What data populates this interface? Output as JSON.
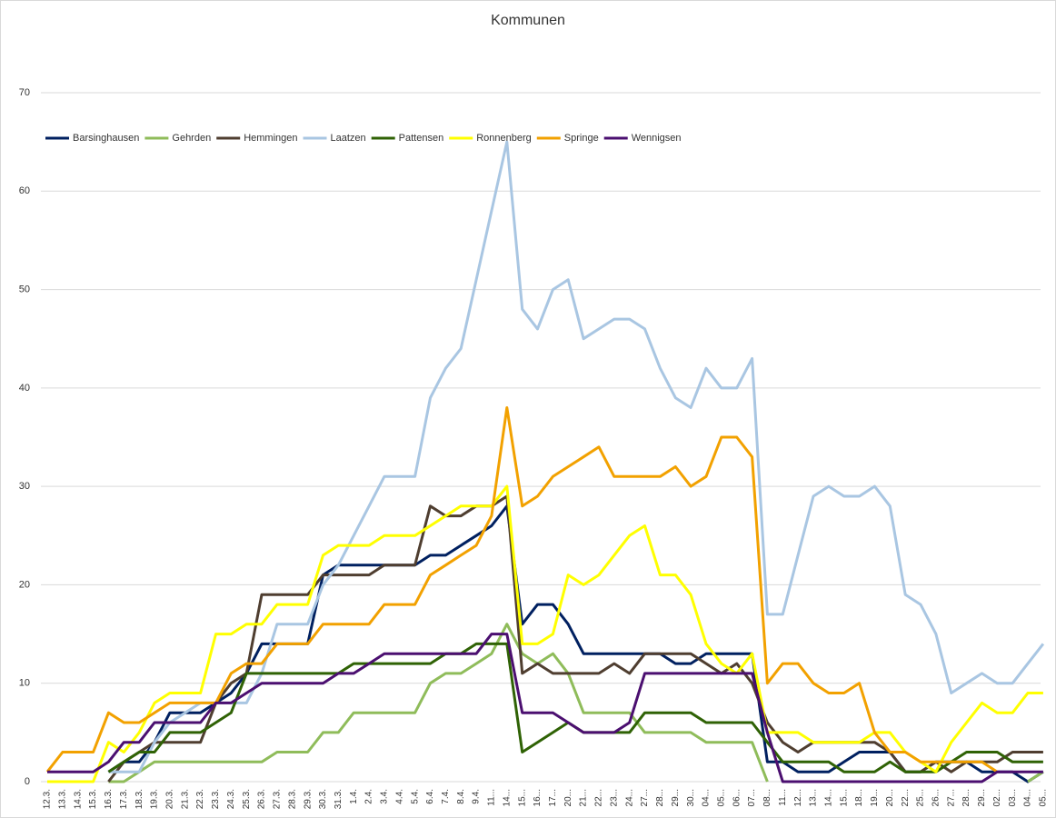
{
  "chart_data": {
    "type": "line",
    "title": "Kommunen",
    "categories": [
      "12.3.",
      "13.3.",
      "14.3.",
      "15.3.",
      "16.3.",
      "17.3.",
      "18.3.",
      "19.3.",
      "20.3.",
      "21.3.",
      "22.3.",
      "23.3.",
      "24.3.",
      "25.3.",
      "26.3.",
      "27.3.",
      "28.3.",
      "29.3.",
      "30.3.",
      "31.3.",
      "1.4.",
      "2.4.",
      "3.4.",
      "4.4.",
      "5.4.",
      "6.4.",
      "7.4.",
      "8.4.",
      "9.4.",
      "11...",
      "14...",
      "15...",
      "16...",
      "17...",
      "20...",
      "21...",
      "22...",
      "23...",
      "24...",
      "27...",
      "28...",
      "29...",
      "30...",
      "04...",
      "05...",
      "06...",
      "07...",
      "08...",
      "11...",
      "12...",
      "13...",
      "14...",
      "15...",
      "18...",
      "19...",
      "20...",
      "22...",
      "25...",
      "26...",
      "27...",
      "28...",
      "29...",
      "02...",
      "03...",
      "04...",
      "05..."
    ],
    "series": [
      {
        "name": "Barsinghausen",
        "color": "#002060",
        "values": [
          null,
          null,
          null,
          null,
          1,
          2,
          2,
          4,
          7,
          7,
          7,
          8,
          9,
          11,
          14,
          14,
          14,
          14,
          21,
          22,
          22,
          22,
          22,
          22,
          22,
          23,
          23,
          24,
          25,
          26,
          28,
          16,
          18,
          18,
          16,
          13,
          13,
          13,
          13,
          13,
          13,
          12,
          12,
          13,
          13,
          13,
          13,
          2,
          2,
          1,
          1,
          1,
          2,
          3,
          3,
          3,
          1,
          1,
          2,
          2,
          2,
          1,
          1,
          1,
          0,
          1
        ]
      },
      {
        "name": "Gehrden",
        "color": "#8fbc5a",
        "values": [
          null,
          null,
          null,
          null,
          0,
          0,
          1,
          2,
          2,
          2,
          2,
          2,
          2,
          2,
          2,
          3,
          3,
          3,
          5,
          5,
          7,
          7,
          7,
          7,
          7,
          10,
          11,
          11,
          12,
          13,
          16,
          13,
          12,
          13,
          11,
          7,
          7,
          7,
          7,
          5,
          5,
          5,
          5,
          4,
          4,
          4,
          4,
          0,
          null,
          null,
          null,
          null,
          null,
          null,
          null,
          null,
          null,
          null,
          null,
          null,
          null,
          null,
          null,
          null,
          0,
          1
        ]
      },
      {
        "name": "Hemmingen",
        "color": "#4f3e30",
        "values": [
          null,
          null,
          null,
          null,
          0,
          2,
          3,
          4,
          4,
          4,
          4,
          8,
          10,
          11,
          19,
          19,
          19,
          19,
          21,
          21,
          21,
          21,
          22,
          22,
          22,
          28,
          27,
          27,
          28,
          28,
          29,
          11,
          12,
          11,
          11,
          11,
          11,
          12,
          11,
          13,
          13,
          13,
          13,
          12,
          11,
          12,
          10,
          6,
          4,
          3,
          4,
          4,
          4,
          4,
          4,
          3,
          1,
          1,
          2,
          1,
          2,
          2,
          2,
          3,
          3,
          3
        ]
      },
      {
        "name": "Laatzen",
        "color": "#a9c6e2",
        "values": [
          null,
          null,
          null,
          null,
          1,
          1,
          1,
          4,
          6,
          7,
          8,
          8,
          8,
          8,
          11,
          16,
          16,
          16,
          20,
          22,
          25,
          28,
          31,
          31,
          31,
          39,
          42,
          44,
          51,
          58,
          65,
          48,
          46,
          50,
          51,
          45,
          46,
          47,
          47,
          46,
          42,
          39,
          38,
          42,
          40,
          40,
          43,
          17,
          17,
          23,
          29,
          30,
          29,
          29,
          30,
          28,
          19,
          18,
          15,
          9,
          10,
          11,
          10,
          10,
          12,
          14
        ]
      },
      {
        "name": "Pattensen",
        "color": "#2f6205",
        "values": [
          null,
          null,
          null,
          null,
          1,
          2,
          3,
          3,
          5,
          5,
          5,
          6,
          7,
          11,
          11,
          11,
          11,
          11,
          11,
          11,
          12,
          12,
          12,
          12,
          12,
          12,
          13,
          13,
          14,
          14,
          14,
          3,
          4,
          5,
          6,
          5,
          5,
          5,
          5,
          7,
          7,
          7,
          7,
          6,
          6,
          6,
          6,
          4,
          2,
          2,
          2,
          2,
          1,
          1,
          1,
          2,
          1,
          1,
          1,
          2,
          3,
          3,
          3,
          2,
          2,
          2
        ]
      },
      {
        "name": "Ronnenberg",
        "color": "#ffff00",
        "values": [
          0,
          0,
          0,
          0,
          4,
          3,
          5,
          8,
          9,
          9,
          9,
          15,
          15,
          16,
          16,
          18,
          18,
          18,
          23,
          24,
          24,
          24,
          25,
          25,
          25,
          26,
          27,
          28,
          28,
          28,
          30,
          14,
          14,
          15,
          21,
          20,
          21,
          23,
          25,
          26,
          21,
          21,
          19,
          14,
          12,
          11,
          13,
          5,
          5,
          5,
          4,
          4,
          4,
          4,
          5,
          5,
          3,
          2,
          1,
          4,
          6,
          8,
          7,
          7,
          9,
          9
        ]
      },
      {
        "name": "Springe",
        "color": "#f2a100",
        "values": [
          1,
          3,
          3,
          3,
          7,
          6,
          6,
          7,
          8,
          8,
          8,
          8,
          11,
          12,
          12,
          14,
          14,
          14,
          16,
          16,
          16,
          16,
          18,
          18,
          18,
          21,
          22,
          23,
          24,
          27,
          38,
          28,
          29,
          31,
          32,
          33,
          34,
          31,
          31,
          31,
          31,
          32,
          30,
          31,
          35,
          35,
          33,
          10,
          12,
          12,
          10,
          9,
          9,
          10,
          5,
          3,
          3,
          2,
          2,
          2,
          2,
          2,
          1,
          null,
          null,
          null
        ]
      },
      {
        "name": "Wennigsen",
        "color": "#4b0f70",
        "values": [
          1,
          1,
          1,
          1,
          2,
          4,
          4,
          6,
          6,
          6,
          6,
          8,
          8,
          9,
          10,
          10,
          10,
          10,
          10,
          11,
          11,
          12,
          13,
          13,
          13,
          13,
          13,
          13,
          13,
          15,
          15,
          7,
          7,
          7,
          6,
          5,
          5,
          5,
          6,
          11,
          11,
          11,
          11,
          11,
          11,
          11,
          11,
          5,
          0,
          0,
          0,
          0,
          0,
          0,
          0,
          0,
          0,
          0,
          0,
          0,
          0,
          0,
          1,
          1,
          1,
          1
        ]
      }
    ],
    "ylim": [
      0,
      70
    ],
    "yticks": [
      0,
      10,
      20,
      30,
      40,
      50,
      60,
      70
    ],
    "grid": true,
    "legend": "top-left"
  }
}
